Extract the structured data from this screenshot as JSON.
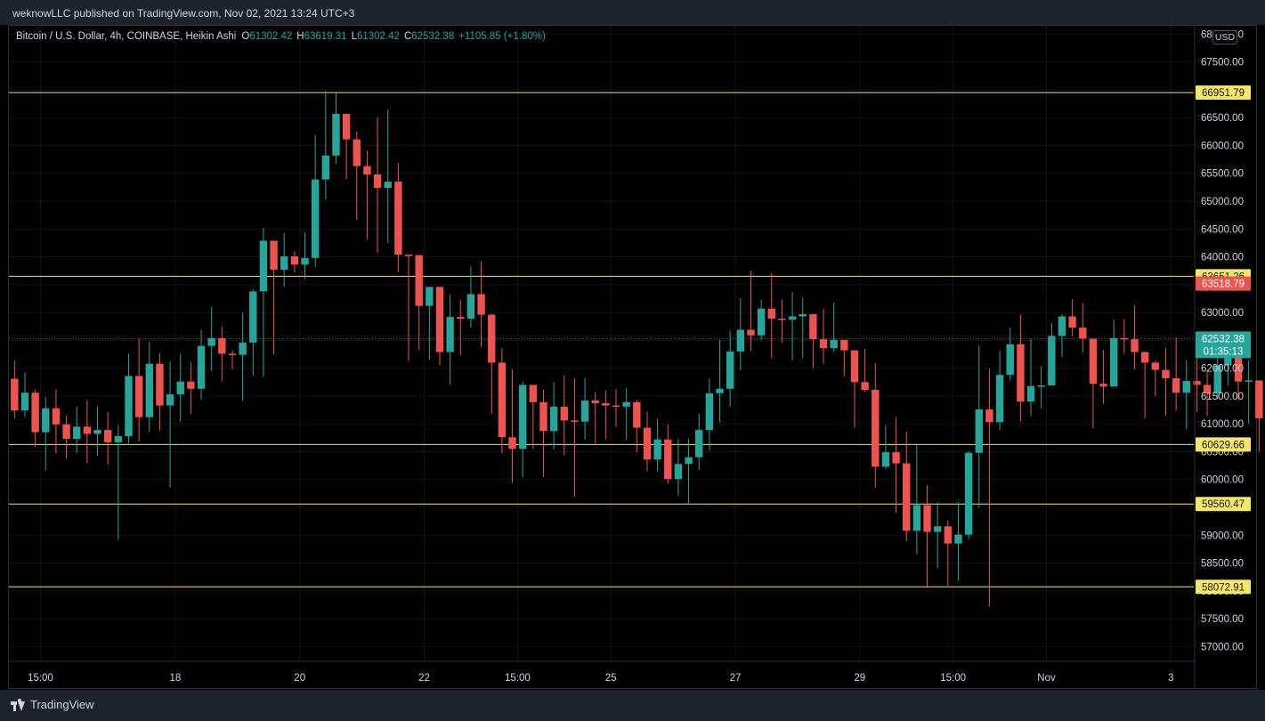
{
  "header": {
    "publisher_line": "weknowLLC published on TradingView.com, Nov 02, 2021 13:24 UTC+3"
  },
  "legend": {
    "symbol": "Bitcoin / U.S. Dollar, 4h, COINBASE, Heikin Ashi",
    "o_label": "O",
    "o_value": "61302.42",
    "h_label": "H",
    "h_value": "63619.31",
    "l_label": "L",
    "l_value": "61302.42",
    "c_label": "C",
    "c_value": "62532.38",
    "change": "+1105.85 (+1.80%)"
  },
  "currency_badge": "USD",
  "footer": {
    "brand": "TradingView"
  },
  "colors": {
    "up": "#26a69a",
    "down": "#ef5350",
    "level": "#f5e663",
    "level_label_bg": "#f5e663",
    "current_price_bg": "#26a69a",
    "red_label_bg": "#ef5350",
    "annotation": "#f5e200"
  },
  "chart_data": {
    "type": "candlestick",
    "title": "",
    "ylim": [
      56750,
      68150
    ],
    "y_ticks": [
      57000,
      57500,
      58000,
      58500,
      59000,
      59500,
      60000,
      60500,
      61000,
      61500,
      62000,
      62500,
      63000,
      63500,
      64000,
      64500,
      65000,
      65500,
      66000,
      66500,
      67000,
      67500,
      68000
    ],
    "y_tick_labels": [
      "57000.00",
      "57500.00",
      "58000.00",
      "58500.00",
      "59000.00",
      "59500.00",
      "60000.00",
      "60500.00",
      "61000.00",
      "61500.00",
      "62000.00",
      "62500.00",
      "63000.00",
      "63500.00",
      "64000.00",
      "64500.00",
      "65000.00",
      "65500.00",
      "66000.00",
      "66500.00",
      "67000.00",
      "67500.00",
      "68000.00"
    ],
    "x_ticks": [
      {
        "label": "15:00",
        "bar": 2.5
      },
      {
        "label": "18",
        "bar": 15.5
      },
      {
        "label": "20",
        "bar": 27.5
      },
      {
        "label": "22",
        "bar": 39.5
      },
      {
        "label": "15:00",
        "bar": 48.5
      },
      {
        "label": "25",
        "bar": 57.5
      },
      {
        "label": "27",
        "bar": 69.5
      },
      {
        "label": "29",
        "bar": 81.5
      },
      {
        "label": "15:00",
        "bar": 90.5
      },
      {
        "label": "Nov",
        "bar": 99.5
      },
      {
        "label": "3",
        "bar": 111.5
      }
    ],
    "horizontal_levels": [
      {
        "price": 66951.79,
        "label": "66951.79"
      },
      {
        "price": 63651.26,
        "label": "63651.26"
      },
      {
        "price": 60629.66,
        "label": "60629.66"
      },
      {
        "price": 59560.47,
        "label": "59560.47"
      },
      {
        "price": 58072.91,
        "label": "58072.91"
      }
    ],
    "price_labels": [
      {
        "price": 63518.79,
        "label": "63518.79",
        "kind": "red"
      },
      {
        "price": 62532.38,
        "label": "62532.38",
        "sub": "01:35:13",
        "kind": "current"
      }
    ],
    "candles": [
      [
        61810,
        61240,
        62140,
        61100
      ],
      [
        61240,
        61560,
        61920,
        61120
      ],
      [
        61560,
        60850,
        61620,
        60590
      ],
      [
        60850,
        61280,
        61480,
        60160
      ],
      [
        61280,
        60990,
        61620,
        60470
      ],
      [
        60990,
        60730,
        61150,
        60380
      ],
      [
        60730,
        60950,
        61310,
        60480
      ],
      [
        60950,
        60820,
        61420,
        60290
      ],
      [
        60820,
        60890,
        61310,
        60430
      ],
      [
        60890,
        60670,
        61210,
        60270
      ],
      [
        60670,
        60780,
        60980,
        58930
      ],
      [
        60780,
        61860,
        62260,
        60650
      ],
      [
        61860,
        61120,
        62530,
        60680
      ],
      [
        61120,
        62080,
        62470,
        60850
      ],
      [
        62080,
        61330,
        62270,
        60880
      ],
      [
        61330,
        61530,
        62120,
        59860
      ],
      [
        61530,
        61760,
        62260,
        61040
      ],
      [
        61760,
        61630,
        62110,
        61180
      ],
      [
        61630,
        62400,
        62690,
        61430
      ],
      [
        62400,
        62540,
        63100,
        61950
      ],
      [
        62540,
        62260,
        62750,
        61760
      ],
      [
        62260,
        62240,
        62320,
        61980
      ],
      [
        62240,
        62460,
        63000,
        61410
      ],
      [
        62460,
        63380,
        63420,
        61870
      ],
      [
        63380,
        64290,
        64520,
        61850
      ],
      [
        64290,
        63770,
        64220,
        62250
      ],
      [
        63770,
        64010,
        64430,
        63460
      ],
      [
        64010,
        63860,
        64100,
        63720
      ],
      [
        63860,
        63980,
        64440,
        63610
      ],
      [
        63980,
        65390,
        66190,
        63820
      ],
      [
        65390,
        65820,
        66980,
        65030
      ],
      [
        65820,
        66570,
        66940,
        65670
      ],
      [
        66570,
        66110,
        66260,
        65400
      ],
      [
        66110,
        65630,
        66250,
        64660
      ],
      [
        65630,
        65480,
        65910,
        64310
      ],
      [
        65480,
        65240,
        66510,
        64070
      ],
      [
        65240,
        65350,
        66650,
        64250
      ],
      [
        65350,
        64040,
        65690,
        63730
      ],
      [
        64040,
        64030,
        64030,
        62130
      ],
      [
        64030,
        63120,
        63890,
        62330
      ],
      [
        63120,
        63460,
        63460,
        62150
      ],
      [
        63460,
        62290,
        62990,
        62050
      ],
      [
        62290,
        62920,
        63330,
        61700
      ],
      [
        62920,
        62890,
        63230,
        62230
      ],
      [
        62890,
        63330,
        63830,
        62730
      ],
      [
        63330,
        62960,
        63920,
        62380
      ],
      [
        62960,
        62100,
        62980,
        61180
      ],
      [
        62100,
        60760,
        62360,
        60470
      ],
      [
        60760,
        60550,
        61980,
        59940
      ],
      [
        60550,
        61700,
        61760,
        60040
      ],
      [
        61700,
        61390,
        61580,
        60550
      ],
      [
        61390,
        60870,
        61610,
        60050
      ],
      [
        60870,
        61310,
        61750,
        60540
      ],
      [
        61310,
        61060,
        61870,
        60440
      ],
      [
        61060,
        61040,
        61820,
        59690
      ],
      [
        61040,
        61420,
        61820,
        60720
      ],
      [
        61420,
        61370,
        61570,
        60650
      ],
      [
        61370,
        61330,
        61600,
        60720
      ],
      [
        61330,
        61310,
        61630,
        60940
      ],
      [
        61310,
        61390,
        61650,
        60710
      ],
      [
        61390,
        60930,
        61430,
        60490
      ],
      [
        60930,
        60360,
        61220,
        60150
      ],
      [
        60360,
        60720,
        61090,
        60150
      ],
      [
        60720,
        60010,
        60990,
        59920
      ],
      [
        60010,
        60280,
        60730,
        59710
      ],
      [
        60280,
        60400,
        60730,
        59550
      ],
      [
        60400,
        60890,
        61180,
        60170
      ],
      [
        60890,
        61550,
        61810,
        60520
      ],
      [
        61550,
        61630,
        62510,
        61030
      ],
      [
        61630,
        62300,
        62670,
        61310
      ],
      [
        62300,
        62690,
        63260,
        61960
      ],
      [
        62690,
        62590,
        63750,
        62310
      ],
      [
        62590,
        63070,
        63230,
        62510
      ],
      [
        63070,
        62890,
        63710,
        62180
      ],
      [
        62890,
        62870,
        63230,
        62460
      ],
      [
        62870,
        62930,
        63370,
        62140
      ],
      [
        62930,
        62970,
        63270,
        62180
      ],
      [
        62970,
        62520,
        62970,
        62000
      ],
      [
        62520,
        62360,
        63070,
        62080
      ],
      [
        62360,
        62510,
        63180,
        62290
      ],
      [
        62510,
        62320,
        62490,
        61850
      ],
      [
        62320,
        61750,
        62210,
        60930
      ],
      [
        61750,
        61610,
        62350,
        61570
      ],
      [
        61610,
        60230,
        62090,
        59850
      ],
      [
        60230,
        60490,
        60980,
        60190
      ],
      [
        60490,
        60290,
        61120,
        59400
      ],
      [
        60290,
        59080,
        60860,
        58890
      ],
      [
        59080,
        59540,
        60630,
        58660
      ],
      [
        59540,
        59060,
        59900,
        58080
      ],
      [
        59060,
        59160,
        59590,
        58410
      ],
      [
        59160,
        58850,
        59270,
        58090
      ],
      [
        58850,
        59010,
        59590,
        58180
      ],
      [
        59010,
        60480,
        60510,
        58930
      ],
      [
        60480,
        61260,
        62410,
        59500
      ],
      [
        61260,
        61030,
        61990,
        57720
      ],
      [
        61030,
        61880,
        62310,
        60890
      ],
      [
        61880,
        62430,
        62730,
        61780
      ],
      [
        62430,
        61400,
        62960,
        61040
      ],
      [
        61400,
        61680,
        62530,
        61140
      ],
      [
        61680,
        61690,
        62040,
        61280
      ],
      [
        61690,
        62580,
        62810,
        62350
      ],
      [
        62580,
        62930,
        62970,
        62200
      ],
      [
        62930,
        62730,
        63240,
        62580
      ],
      [
        62730,
        62530,
        63170,
        62280
      ],
      [
        62530,
        61720,
        62420,
        60920
      ],
      [
        61720,
        61670,
        62330,
        61360
      ],
      [
        61670,
        62540,
        62870,
        61880
      ],
      [
        62540,
        62520,
        62880,
        62260
      ],
      [
        62520,
        62290,
        63130,
        61980
      ],
      [
        62290,
        62100,
        62300,
        61100
      ],
      [
        62100,
        61970,
        62140,
        61500
      ],
      [
        61970,
        61820,
        62360,
        61150
      ],
      [
        61820,
        61560,
        62550,
        61240
      ],
      [
        61560,
        61770,
        62150,
        60900
      ],
      [
        61770,
        61700,
        62300,
        61220
      ],
      [
        61700,
        61550,
        61960,
        61140
      ],
      [
        61550,
        62050,
        62210,
        61440
      ],
      [
        62050,
        62200,
        62540,
        61690
      ],
      [
        62200,
        61760,
        62130,
        61420
      ],
      [
        61760,
        61780,
        62140,
        61000
      ],
      [
        61780,
        61100,
        61620,
        60490
      ],
      [
        61100,
        60920,
        61470,
        60580
      ],
      [
        60920,
        61210,
        61620,
        60400
      ],
      [
        61210,
        61660,
        61810,
        60960
      ],
      [
        61660,
        62520,
        62660,
        61410
      ],
      [
        62520,
        62170,
        62620,
        61560
      ],
      [
        62170,
        61440,
        61880,
        60950
      ],
      [
        61440,
        61200,
        61850,
        60640
      ],
      [
        61200,
        61580,
        61940,
        61120
      ],
      [
        61580,
        62200,
        62480,
        61350
      ],
      [
        61302.42,
        62532.38,
        63619.31,
        61302.42
      ]
    ],
    "annotation": "hand-drawn circle"
  }
}
